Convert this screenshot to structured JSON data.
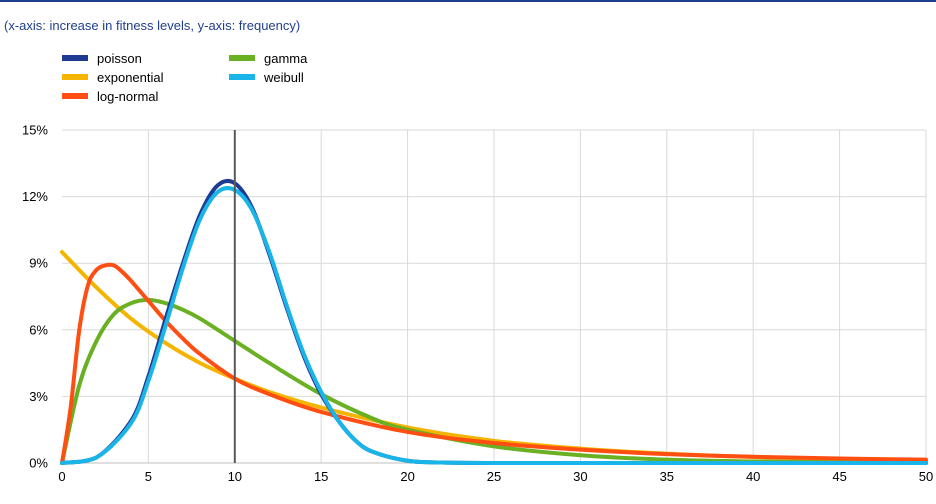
{
  "subtitle": "(x-axis: increase in fitness levels, y-axis: frequency)",
  "chart_data": {
    "type": "line",
    "title": "",
    "subtitle": "(x-axis: increase in fitness levels, y-axis: frequency)",
    "xlabel": "",
    "ylabel": "",
    "xlim": [
      0,
      50
    ],
    "ylim": [
      0,
      15
    ],
    "x_ticks": [
      0,
      5,
      10,
      15,
      20,
      25,
      30,
      35,
      40,
      45,
      50
    ],
    "y_ticks": [
      0,
      3,
      6,
      9,
      12,
      15
    ],
    "y_tick_labels": [
      "0%",
      "3%",
      "6%",
      "9%",
      "12%",
      "15%"
    ],
    "grid": true,
    "legend_position": "top-left",
    "reference_line_x": 10,
    "series": [
      {
        "name": "poisson",
        "color": "#1f3a93",
        "x": [
          0,
          2,
          4,
          5,
          6,
          7,
          8,
          9,
          10,
          11,
          12,
          13,
          14,
          15,
          16,
          17,
          18,
          20,
          22,
          25,
          30,
          50
        ],
        "y": [
          0.0,
          0.25,
          1.9,
          3.9,
          6.5,
          9.0,
          11.2,
          12.5,
          12.6,
          11.5,
          9.4,
          7.0,
          4.8,
          3.1,
          1.9,
          1.0,
          0.5,
          0.1,
          0.02,
          0.0,
          0.0,
          0.0
        ]
      },
      {
        "name": "exponential",
        "color": "#f4b400",
        "x": [
          0,
          2,
          4,
          6,
          8,
          10,
          12,
          15,
          20,
          25,
          30,
          35,
          40,
          45,
          50
        ],
        "y": [
          9.5,
          7.9,
          6.5,
          5.4,
          4.5,
          3.8,
          3.2,
          2.5,
          1.6,
          1.0,
          0.65,
          0.42,
          0.27,
          0.18,
          0.12
        ]
      },
      {
        "name": "log-normal",
        "color": "#ff4e12",
        "x": [
          0,
          0.5,
          1,
          1.5,
          2,
          2.5,
          3,
          3.5,
          4,
          5,
          6,
          7,
          8,
          10,
          12,
          15,
          20,
          25,
          30,
          35,
          40,
          45,
          50
        ],
        "y": [
          0.0,
          2.5,
          6.0,
          8.0,
          8.7,
          8.9,
          8.9,
          8.6,
          8.2,
          7.3,
          6.4,
          5.6,
          4.9,
          3.8,
          3.1,
          2.3,
          1.4,
          0.9,
          0.6,
          0.4,
          0.28,
          0.2,
          0.15
        ]
      },
      {
        "name": "gamma",
        "color": "#6ab023",
        "x": [
          0,
          1,
          2,
          3,
          4,
          5,
          6,
          7,
          8,
          10,
          12,
          15,
          18,
          20,
          25,
          30,
          35,
          40,
          45,
          50
        ],
        "y": [
          0.0,
          3.5,
          5.5,
          6.7,
          7.2,
          7.35,
          7.2,
          6.9,
          6.5,
          5.5,
          4.5,
          3.1,
          2.0,
          1.5,
          0.75,
          0.35,
          0.15,
          0.07,
          0.03,
          0.01
        ]
      },
      {
        "name": "weibull",
        "color": "#19b4e8",
        "x": [
          0,
          2,
          4,
          5,
          6,
          7,
          8,
          9,
          10,
          11,
          12,
          13,
          14,
          15,
          16,
          17,
          18,
          20,
          22,
          25,
          30,
          50
        ],
        "y": [
          0.0,
          0.25,
          1.8,
          3.7,
          6.2,
          8.8,
          11.0,
          12.2,
          12.3,
          11.4,
          9.5,
          7.1,
          4.9,
          3.2,
          1.9,
          1.0,
          0.5,
          0.1,
          0.02,
          0.0,
          0.0,
          0.0
        ]
      }
    ]
  }
}
